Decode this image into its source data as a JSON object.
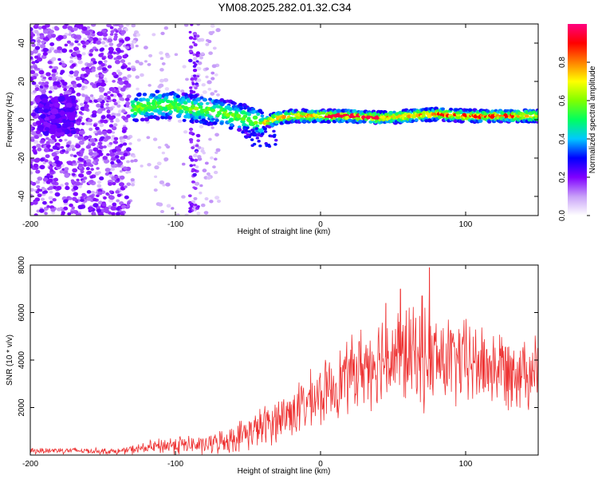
{
  "title": "YM08.2025.282.01.32.C34",
  "chart_data": [
    {
      "type": "heatmap",
      "name": "spectrogram",
      "xlabel": "Height of straight line (km)",
      "ylabel": "Frequency (Hz)",
      "xlim": [
        -200,
        150
      ],
      "ylim": [
        -50,
        50
      ],
      "xticks": [
        -200,
        -100,
        0,
        100
      ],
      "yticks": [
        -40,
        -20,
        0,
        20,
        40
      ],
      "grid": false,
      "trace": [
        {
          "x": -130,
          "y": 6
        },
        {
          "x": -120,
          "y": 7
        },
        {
          "x": -110,
          "y": 8
        },
        {
          "x": -100,
          "y": 7
        },
        {
          "x": -90,
          "y": 6
        },
        {
          "x": -80,
          "y": 5
        },
        {
          "x": -70,
          "y": 4
        },
        {
          "x": -60,
          "y": 2
        },
        {
          "x": -50,
          "y": 0
        },
        {
          "x": -40,
          "y": -2
        },
        {
          "x": -30,
          "y": 1
        },
        {
          "x": -20,
          "y": 2
        },
        {
          "x": 0,
          "y": 2
        },
        {
          "x": 20,
          "y": 2
        },
        {
          "x": 40,
          "y": 1
        },
        {
          "x": 60,
          "y": 2
        },
        {
          "x": 80,
          "y": 3
        },
        {
          "x": 100,
          "y": 2
        },
        {
          "x": 120,
          "y": 2
        },
        {
          "x": 150,
          "y": 2
        }
      ],
      "colorbar": {
        "label": "Normalized spectral amplitude",
        "range": [
          0.0,
          1.0
        ],
        "ticks": [
          "0.0",
          "0.2",
          "0.4",
          "0.6",
          "0.8"
        ],
        "colors": [
          "#ffffff",
          "#c8a0f8",
          "#8000ff",
          "#0000ff",
          "#00c8ff",
          "#00ff60",
          "#80ff00",
          "#ffff00",
          "#ff8000",
          "#ff0000",
          "#ff0080"
        ]
      }
    },
    {
      "type": "line",
      "name": "snr",
      "xlabel": "Height of straight line (km)",
      "ylabel": "SNR (10 * v/v)",
      "xlim": [
        -200,
        150
      ],
      "ylim": [
        0,
        8000
      ],
      "xticks": [
        -200,
        -100,
        0,
        100
      ],
      "yticks": [
        2000,
        4000,
        6000,
        8000
      ],
      "color": "#ee3333",
      "envelope": [
        {
          "x": -200,
          "mean": 180,
          "spread": 150
        },
        {
          "x": -180,
          "mean": 200,
          "spread": 180
        },
        {
          "x": -160,
          "mean": 180,
          "spread": 150
        },
        {
          "x": -140,
          "mean": 150,
          "spread": 150
        },
        {
          "x": -120,
          "mean": 300,
          "spread": 300
        },
        {
          "x": -100,
          "mean": 450,
          "spread": 500
        },
        {
          "x": -80,
          "mean": 400,
          "spread": 450
        },
        {
          "x": -60,
          "mean": 700,
          "spread": 700
        },
        {
          "x": -40,
          "mean": 1200,
          "spread": 1000
        },
        {
          "x": -20,
          "mean": 1800,
          "spread": 1300
        },
        {
          "x": 0,
          "mean": 2500,
          "spread": 1500
        },
        {
          "x": 20,
          "mean": 3400,
          "spread": 1800
        },
        {
          "x": 40,
          "mean": 4100,
          "spread": 2300
        },
        {
          "x": 60,
          "mean": 4200,
          "spread": 2500
        },
        {
          "x": 80,
          "mean": 4000,
          "spread": 2400
        },
        {
          "x": 100,
          "mean": 3900,
          "spread": 2200
        },
        {
          "x": 120,
          "mean": 3700,
          "spread": 2000
        },
        {
          "x": 150,
          "mean": 3600,
          "spread": 1900
        }
      ],
      "peaks": [
        {
          "x": 75,
          "y": 7900
        },
        {
          "x": 55,
          "y": 7000
        },
        {
          "x": 70,
          "y": 6700
        },
        {
          "x": 45,
          "y": 6400
        }
      ]
    }
  ]
}
